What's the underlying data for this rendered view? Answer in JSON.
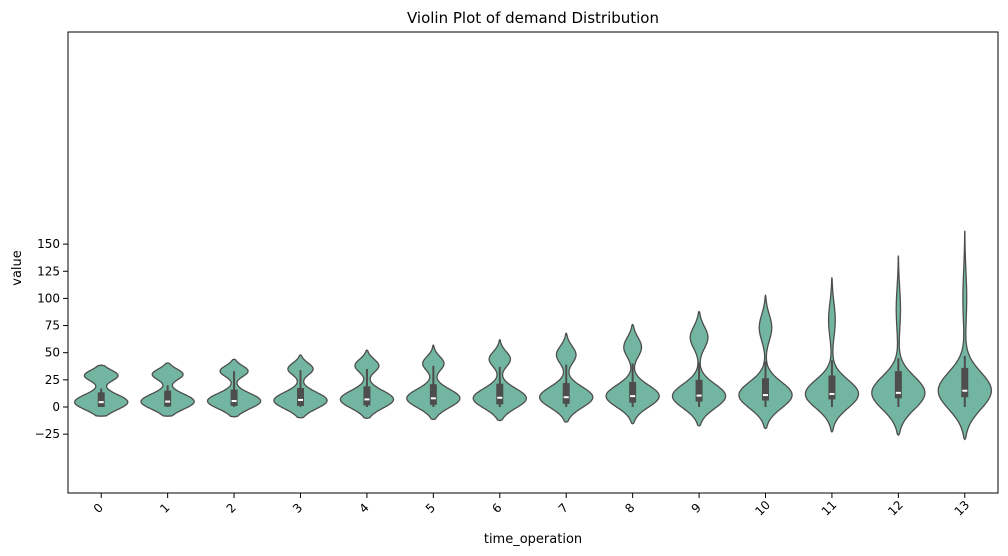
{
  "chart_data": {
    "type": "violin",
    "title": "Violin Plot of demand Distribution",
    "xlabel": "time_operation",
    "ylabel": "value",
    "categories": [
      "0",
      "1",
      "2",
      "3",
      "4",
      "5",
      "6",
      "7",
      "8",
      "9",
      "10",
      "11",
      "12",
      "13"
    ],
    "yticks": [
      -25,
      0,
      25,
      50,
      75,
      100,
      125,
      150
    ],
    "ytick_labels": [
      "−25",
      "0",
      "25",
      "50",
      "75",
      "100",
      "125",
      "150"
    ],
    "ylim": [
      -40,
      175
    ],
    "violin_color": "#72b6a1",
    "edge_color": "#4d4d4d",
    "violins": [
      {
        "category": "0",
        "min": -8.5,
        "max": 38.5,
        "q1": 0,
        "median": 4.5,
        "q3": 13.5,
        "whisker_low": 0,
        "whisker_high": 17,
        "bumps": [
          [
            4.5,
            19,
            7
          ],
          [
            29,
            12,
            5
          ]
        ]
      },
      {
        "category": "1",
        "min": -8.5,
        "max": 40.5,
        "q1": 0.5,
        "median": 5,
        "q3": 15,
        "whisker_low": 0,
        "whisker_high": 20,
        "bumps": [
          [
            5,
            19,
            7
          ],
          [
            30,
            11,
            5
          ]
        ]
      },
      {
        "category": "2",
        "min": -9,
        "max": 44,
        "q1": 1,
        "median": 5.5,
        "q3": 16,
        "whisker_low": 0,
        "whisker_high": 33,
        "bumps": [
          [
            5.5,
            19,
            7
          ],
          [
            33,
            10,
            5
          ]
        ]
      },
      {
        "category": "3",
        "min": -10,
        "max": 48,
        "q1": 1,
        "median": 6.5,
        "q3": 17.5,
        "whisker_low": 0,
        "whisker_high": 34,
        "bumps": [
          [
            6,
            19,
            7.5
          ],
          [
            35,
            9,
            5.5
          ]
        ]
      },
      {
        "category": "4",
        "min": -10.5,
        "max": 52.5,
        "q1": 1.5,
        "median": 7,
        "q3": 19,
        "whisker_low": 0,
        "whisker_high": 35,
        "bumps": [
          [
            7,
            20,
            8
          ],
          [
            38,
            9,
            6
          ]
        ]
      },
      {
        "category": "5",
        "min": -11.5,
        "max": 57,
        "q1": 2,
        "median": 8,
        "q3": 21,
        "whisker_low": 0,
        "whisker_high": 38,
        "bumps": [
          [
            8,
            20,
            8.5
          ],
          [
            40,
            8,
            6.5
          ]
        ]
      },
      {
        "category": "6",
        "min": -12.5,
        "max": 62,
        "q1": 2.5,
        "median": 8.5,
        "q3": 21.5,
        "whisker_low": 0,
        "whisker_high": 37,
        "bumps": [
          [
            8,
            20,
            9
          ],
          [
            44,
            8,
            7
          ]
        ]
      },
      {
        "category": "7",
        "min": -14,
        "max": 68,
        "q1": 3,
        "median": 9,
        "q3": 22,
        "whisker_low": 0,
        "whisker_high": 39,
        "bumps": [
          [
            9,
            19,
            9.5
          ],
          [
            48,
            7,
            8
          ]
        ]
      },
      {
        "category": "8",
        "min": -15.5,
        "max": 76,
        "q1": 4,
        "median": 10,
        "q3": 23,
        "whisker_low": 0,
        "whisker_high": 40,
        "bumps": [
          [
            10,
            18,
            10
          ],
          [
            55,
            6,
            9
          ]
        ]
      },
      {
        "category": "9",
        "min": -17.5,
        "max": 88,
        "q1": 5,
        "median": 10.5,
        "q3": 25,
        "whisker_low": 0,
        "whisker_high": 41,
        "bumps": [
          [
            10,
            18,
            11
          ],
          [
            64,
            6,
            10
          ]
        ]
      },
      {
        "category": "10",
        "min": -20,
        "max": 103,
        "q1": 6,
        "median": 11,
        "q3": 26.5,
        "whisker_low": 0,
        "whisker_high": 42,
        "bumps": [
          [
            11,
            17,
            12
          ],
          [
            73,
            4,
            12
          ]
        ]
      },
      {
        "category": "11",
        "min": -23,
        "max": 119,
        "q1": 7,
        "median": 12,
        "q3": 29,
        "whisker_low": 0,
        "whisker_high": 43,
        "bumps": [
          [
            12,
            16,
            13
          ],
          [
            80,
            2,
            16
          ]
        ]
      },
      {
        "category": "12",
        "min": -26,
        "max": 139,
        "q1": 8,
        "median": 13,
        "q3": 33,
        "whisker_low": 0,
        "whisker_high": 45,
        "bumps": [
          [
            13,
            15,
            15
          ],
          [
            90,
            1.2,
            20
          ]
        ]
      },
      {
        "category": "13",
        "min": -30,
        "max": 162,
        "q1": 9,
        "median": 15,
        "q3": 36,
        "whisker_low": 0,
        "whisker_high": 47,
        "bumps": [
          [
            15,
            14,
            17
          ],
          [
            100,
            1,
            25
          ]
        ]
      }
    ]
  }
}
